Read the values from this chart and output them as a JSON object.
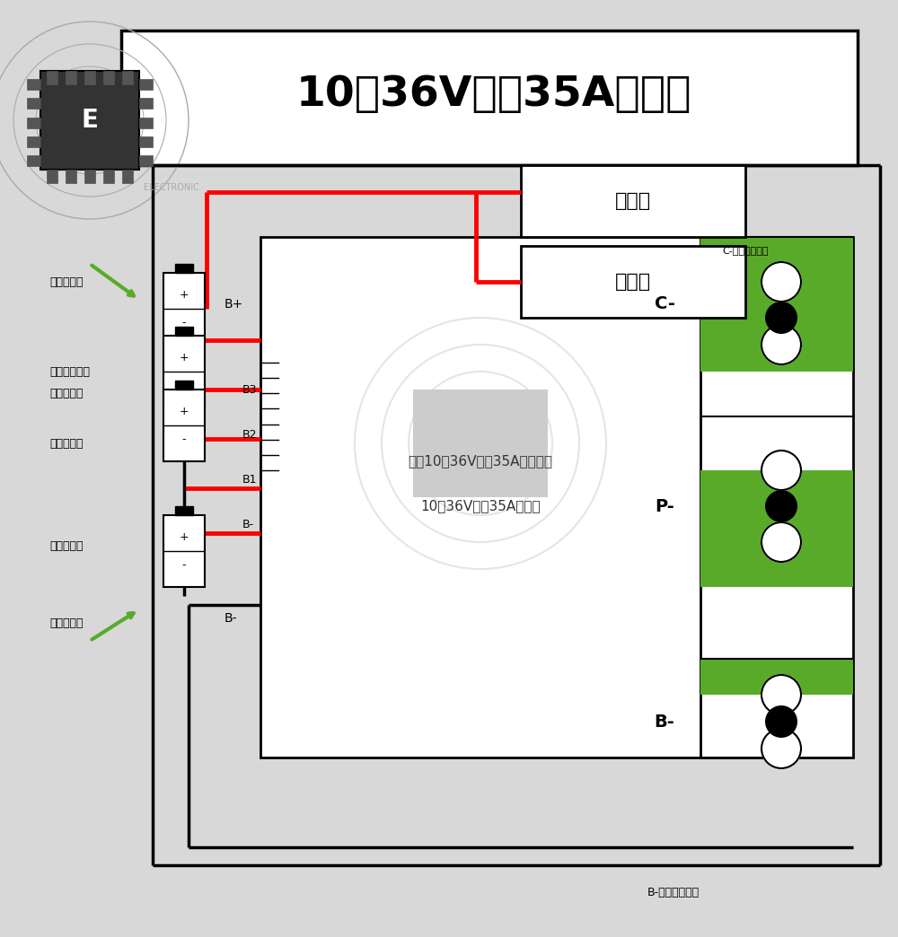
{
  "title": "10串36V分口35A接线图",
  "bg_color": "#d8d8d8",
  "white": "#ffffff",
  "black": "#000000",
  "red": "#ff0000",
  "green": "#5aaa2a",
  "dark_green": "#3a8a1a",
  "gray": "#aaaaaa",
  "light_gray": "#cccccc",
  "text_color": "#1a1a1a",
  "label_放电端": "放电端",
  "label_充电端": "充电端",
  "label_B+": "B+",
  "label_B-": "B-",
  "label_Bplus_terminal": "B+",
  "label_Bminus_terminal": "B-",
  "label_Cminus": "C-",
  "label_Pminus": "P-",
  "label_Bminus_tag": "B-",
  "label_B3": "B3",
  "label_B2": "B2",
  "label_B1": "B1",
  "label_Bneg": "B-",
  "label_board_line1": "常发10串36V分口35A（型号）",
  "label_board_line2": "10串36V分口35A接线图",
  "label_电池总正极": "电池总正极",
  "label_最后一串电池": "最后一串电池",
  "label_第三串电池": "第三串电池",
  "label_第二串电池": "第二串电池",
  "label_第一串电池": "第一串电池",
  "label_电池总负极": "电池总负极",
  "label_C_note": "C-焊充电器负极",
  "label_B_note": "B-接电池总负极",
  "label_ELECTRONIC": "ELECTRONIC"
}
